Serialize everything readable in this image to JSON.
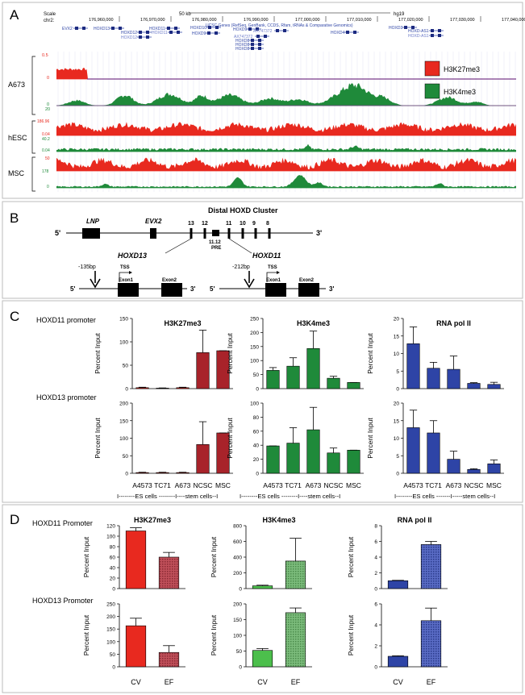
{
  "panels": {
    "a": "A",
    "b": "B",
    "c": "C",
    "d": "D"
  },
  "colors": {
    "red": "#e8291f",
    "green": "#1f8a3a",
    "blue": "#2e44a6",
    "darkred": "#a8232a",
    "purple": "#7a3a8a",
    "lightgreen": "#4cbf4c",
    "pattern_red": "#b0414a",
    "pattern_green": "#6aab6a",
    "pattern_blue": "#4a5bb5"
  },
  "panel_a": {
    "scale_label": "Scale",
    "chr_label": "chr2:",
    "scale_bar": "50 kb",
    "assembly": "hg19",
    "coords": [
      "176,960,000",
      "176,970,000",
      "176,980,000",
      "176,990,000",
      "177,000,000",
      "177,010,000",
      "177,020,000",
      "177,030,000",
      "177,040,000",
      "177,050,00"
    ],
    "genes": [
      "EVX2",
      "HOXD13",
      "HOXD12",
      "HOXD12",
      "HOXD11",
      "HOXD11",
      "HOXD10",
      "HOXD9",
      "HOXD9",
      "HOXD8",
      "HOXD8",
      "HOXD8",
      "HOXD4",
      "HOXD3",
      "HOXD-AS1",
      "HOXD-AS1",
      "AX747372",
      "AX747372"
    ],
    "genes_caption": "UCSC Genes (RefSeq, GenBank, CCDS, Rfam, tRNAs & Comparative Genomics)",
    "tracks": [
      {
        "label": "A673",
        "scale_top": "0.5",
        "scale_bottom": "0"
      },
      {
        "label": "hESC",
        "scale_top": "186.96",
        "scale_mid": "0.04",
        "scale_mid2": "40.2",
        "scale_bottom": "0.04"
      },
      {
        "label": "MSC",
        "scale_top": "50",
        "scale_mid": "178",
        "scale_bottom": "0"
      }
    ],
    "a673_green_scale": [
      "0",
      "20"
    ],
    "legend": [
      {
        "label": "H3K27me3",
        "color": "#e8291f"
      },
      {
        "label": "H3K4me3",
        "color": "#1f8a3a"
      }
    ]
  },
  "panel_b": {
    "title": "Distal HOXD Cluster",
    "five": "5'",
    "three": "3'",
    "genes": [
      "LNP",
      "EVX2"
    ],
    "numbers": [
      "13",
      "12",
      "11",
      "10",
      "9",
      "8"
    ],
    "pre": "11.12\nPRE",
    "pre_line1": "11.12",
    "pre_line2": "PRE",
    "left": {
      "gene": "HOXD13",
      "bp": "-135bp",
      "tss": "TSS",
      "exon1": "Exon1",
      "exon2": "Exon2"
    },
    "right": {
      "gene": "HOXD11",
      "bp": "-212bp",
      "tss": "TSS",
      "exon1": "Exon1",
      "exon2": "Exon2"
    }
  },
  "panel_c": {
    "row_labels": [
      "HOXD11 promoter",
      "HOXD13 promoter"
    ],
    "ylabel": "Percent Input",
    "categories": [
      "A4573",
      "TC71",
      "A673",
      "NCSC",
      "MSC"
    ],
    "group_line": "I--------ES cells --------I----stem cells--I",
    "group_line_alt": "I--------ES cells -------I-----stem cells--I",
    "titles": [
      "H3K27me3",
      "H3K4me3",
      "RNA pol II"
    ]
  },
  "panel_d": {
    "row_labels": [
      "HOXD11 Promoter",
      "HOXD13 Promoter"
    ],
    "ylabel": "Percent Input",
    "categories": [
      "CV",
      "EF"
    ],
    "titles": [
      "H3K27me3",
      "H3K4me3",
      "RNA pol II"
    ]
  },
  "chart_data": [
    {
      "type": "bar",
      "panel": "C",
      "row": "HOXD11 promoter",
      "title": "H3K27me3",
      "ylabel": "Percent Input",
      "categories": [
        "A4573",
        "TC71",
        "A673",
        "NCSC",
        "MSC"
      ],
      "values": [
        2,
        1,
        2,
        77,
        81
      ],
      "errors": [
        1,
        0.5,
        1,
        48,
        0
      ],
      "ylim": [
        0,
        150
      ],
      "ticks": [
        0,
        50,
        100,
        150
      ],
      "colors": [
        "#e8291f",
        "#e8291f",
        "#e8291f",
        "#a8232a",
        "#a8232a"
      ]
    },
    {
      "type": "bar",
      "panel": "C",
      "row": "HOXD11 promoter",
      "title": "H3K4me3",
      "ylabel": "Percent Input",
      "categories": [
        "A4573",
        "TC71",
        "A673",
        "NCSC",
        "MSC"
      ],
      "values": [
        65,
        80,
        143,
        37,
        22
      ],
      "errors": [
        10,
        30,
        62,
        7,
        0
      ],
      "ylim": [
        0,
        250
      ],
      "ticks": [
        0,
        50,
        100,
        150,
        200,
        250
      ],
      "colors": [
        "#1f8a3a",
        "#1f8a3a",
        "#1f8a3a",
        "#1f8a3a",
        "#1f8a3a"
      ]
    },
    {
      "type": "bar",
      "panel": "C",
      "row": "HOXD11 promoter",
      "title": "RNA pol II",
      "ylabel": "Percent Input",
      "categories": [
        "A4573",
        "TC71",
        "A673",
        "NCSC",
        "MSC"
      ],
      "values": [
        12.8,
        5.8,
        5.5,
        1.5,
        1.2
      ],
      "errors": [
        4.8,
        1.7,
        3.8,
        0.2,
        0.6
      ],
      "ylim": [
        0,
        20
      ],
      "ticks": [
        0,
        5,
        10,
        15,
        20
      ],
      "colors": [
        "#2e44a6",
        "#2e44a6",
        "#2e44a6",
        "#2e44a6",
        "#2e44a6"
      ]
    },
    {
      "type": "bar",
      "panel": "C",
      "row": "HOXD13 promoter",
      "title": "H3K27me3",
      "ylabel": "Percent Input",
      "categories": [
        "A4573",
        "TC71",
        "A673",
        "NCSC",
        "MSC"
      ],
      "values": [
        2,
        2,
        2,
        82,
        115
      ],
      "errors": [
        1,
        1,
        1,
        65,
        0
      ],
      "ylim": [
        0,
        200
      ],
      "ticks": [
        0,
        50,
        100,
        150,
        200
      ],
      "colors": [
        "#e8291f",
        "#e8291f",
        "#e8291f",
        "#a8232a",
        "#a8232a"
      ]
    },
    {
      "type": "bar",
      "panel": "C",
      "row": "HOXD13 promoter",
      "title": "H3K4me3",
      "ylabel": "Percent Input",
      "categories": [
        "A4573",
        "TC71",
        "A673",
        "NCSC",
        "MSC"
      ],
      "values": [
        39,
        43,
        62,
        29,
        33
      ],
      "errors": [
        0,
        22,
        32,
        7,
        0
      ],
      "ylim": [
        0,
        100
      ],
      "ticks": [
        0,
        20,
        40,
        60,
        80,
        100
      ],
      "colors": [
        "#1f8a3a",
        "#1f8a3a",
        "#1f8a3a",
        "#1f8a3a",
        "#1f8a3a"
      ]
    },
    {
      "type": "bar",
      "panel": "C",
      "row": "HOXD13 promoter",
      "title": "RNA pol II",
      "ylabel": "Percent Input",
      "categories": [
        "A4573",
        "TC71",
        "A673",
        "NCSC",
        "MSC"
      ],
      "values": [
        13,
        11.5,
        4,
        1.1,
        2.7
      ],
      "errors": [
        5,
        3.5,
        2.3,
        0.2,
        1.1
      ],
      "ylim": [
        0,
        20
      ],
      "ticks": [
        0,
        5,
        10,
        15,
        20
      ],
      "colors": [
        "#2e44a6",
        "#2e44a6",
        "#2e44a6",
        "#2e44a6",
        "#2e44a6"
      ]
    },
    {
      "type": "bar",
      "panel": "D",
      "row": "HOXD11 Promoter",
      "title": "H3K27me3",
      "ylabel": "Percent Input",
      "categories": [
        "CV",
        "EF"
      ],
      "values": [
        110,
        60
      ],
      "errors": [
        6,
        9
      ],
      "ylim": [
        0,
        120
      ],
      "ticks": [
        0,
        20,
        40,
        60,
        80,
        100,
        120
      ],
      "colors": [
        "#e8291f",
        "#b0414a"
      ]
    },
    {
      "type": "bar",
      "panel": "D",
      "row": "HOXD11 Promoter",
      "title": "H3K4me3",
      "ylabel": "Percent Input",
      "categories": [
        "CV",
        "EF"
      ],
      "values": [
        35,
        350
      ],
      "errors": [
        8,
        290
      ],
      "ylim": [
        0,
        800
      ],
      "ticks": [
        0,
        200,
        400,
        600,
        800
      ],
      "colors": [
        "#4cbf4c",
        "#6aab6a"
      ]
    },
    {
      "type": "bar",
      "panel": "D",
      "row": "HOXD11 Promoter",
      "title": "RNA pol II",
      "ylabel": "Percent Input",
      "categories": [
        "CV",
        "EF"
      ],
      "values": [
        1,
        5.6
      ],
      "errors": [
        0.05,
        0.4
      ],
      "ylim": [
        0,
        8
      ],
      "ticks": [
        0,
        2,
        4,
        6,
        8
      ],
      "colors": [
        "#2e44a6",
        "#4a5bb5"
      ]
    },
    {
      "type": "bar",
      "panel": "D",
      "row": "HOXD13 Promoter",
      "title": "H3K27me3",
      "ylabel": "Percent Input",
      "categories": [
        "CV",
        "EF"
      ],
      "values": [
        163,
        57
      ],
      "errors": [
        30,
        27
      ],
      "ylim": [
        0,
        250
      ],
      "ticks": [
        0,
        50,
        100,
        150,
        200,
        250
      ],
      "colors": [
        "#e8291f",
        "#b0414a"
      ]
    },
    {
      "type": "bar",
      "panel": "D",
      "row": "HOXD13 Promoter",
      "title": "H3K4me3",
      "ylabel": "Percent Input",
      "categories": [
        "CV",
        "EF"
      ],
      "values": [
        52,
        172
      ],
      "errors": [
        6,
        15
      ],
      "ylim": [
        0,
        200
      ],
      "ticks": [
        0,
        50,
        100,
        150,
        200
      ],
      "colors": [
        "#4cbf4c",
        "#6aab6a"
      ]
    },
    {
      "type": "bar",
      "panel": "D",
      "row": "HOXD13 Promoter",
      "title": "RNA pol II",
      "ylabel": "Percent Input",
      "categories": [
        "CV",
        "EF"
      ],
      "values": [
        1,
        4.4
      ],
      "errors": [
        0.05,
        1.2
      ],
      "ylim": [
        0,
        6
      ],
      "ticks": [
        0,
        2,
        4,
        6
      ],
      "colors": [
        "#2e44a6",
        "#4a5bb5"
      ]
    }
  ]
}
